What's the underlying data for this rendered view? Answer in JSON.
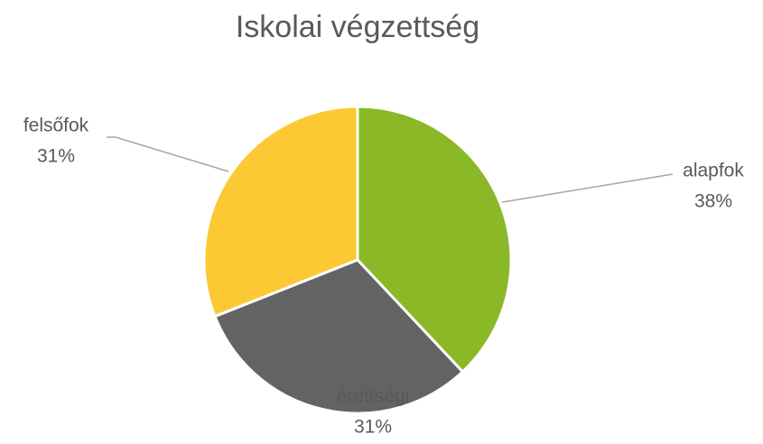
{
  "chart_data": {
    "type": "pie",
    "title": "Iskolai végzettség",
    "categories": [
      "alapfok",
      "érettségi",
      "felsőfok"
    ],
    "values": [
      38,
      31,
      31
    ],
    "value_labels": [
      "38%",
      "31%",
      "31%"
    ],
    "colors": [
      "#8ab827",
      "#636363",
      "#fcc934"
    ]
  }
}
